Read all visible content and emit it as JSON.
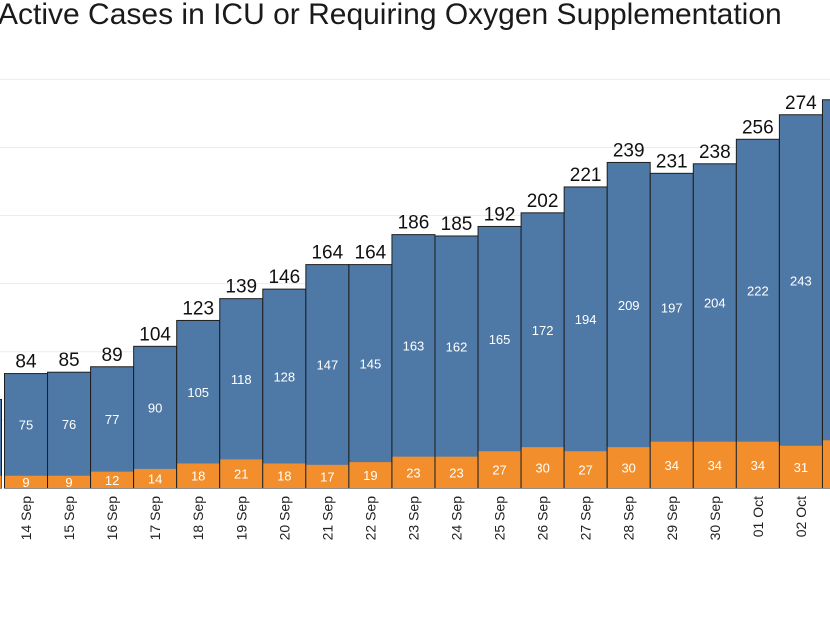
{
  "chart_data": {
    "type": "bar",
    "stacked": true,
    "title": "Active Cases in ICU or Requiring Oxygen Supplementation",
    "categories": [
      "14 Sep",
      "15 Sep",
      "16 Sep",
      "17 Sep",
      "18 Sep",
      "19 Sep",
      "20 Sep",
      "21 Sep",
      "22 Sep",
      "23 Sep",
      "24 Sep",
      "25 Sep",
      "26 Sep",
      "27 Sep",
      "28 Sep",
      "29 Sep",
      "30 Sep",
      "01 Oct",
      "02 Oct"
    ],
    "totals": [
      84,
      85,
      89,
      104,
      123,
      139,
      146,
      164,
      164,
      186,
      185,
      192,
      202,
      221,
      239,
      231,
      238,
      256,
      274
    ],
    "series": [
      {
        "color": "#4e79a7",
        "values": [
          75,
          76,
          77,
          90,
          105,
          118,
          128,
          147,
          145,
          163,
          162,
          165,
          172,
          194,
          209,
          197,
          204,
          222,
          243
        ]
      },
      {
        "color": "#f28e2b",
        "values": [
          9,
          9,
          12,
          14,
          18,
          21,
          18,
          17,
          19,
          23,
          23,
          27,
          30,
          27,
          30,
          34,
          34,
          34,
          31
        ]
      }
    ],
    "xlabel": "",
    "ylabel": "",
    "ylim": [
      0,
      300
    ],
    "grid": true
  }
}
